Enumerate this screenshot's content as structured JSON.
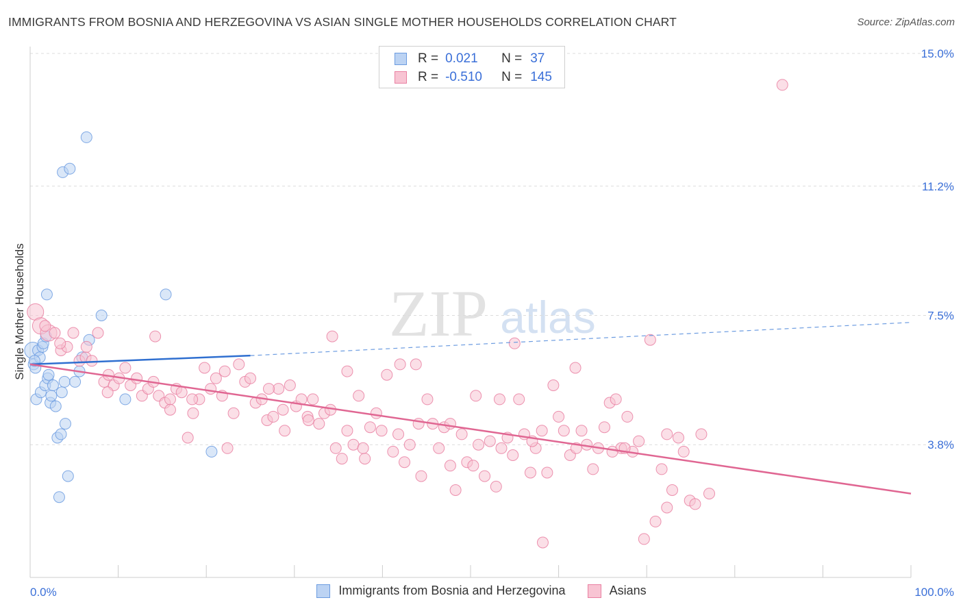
{
  "title": "IMMIGRANTS FROM BOSNIA AND HERZEGOVINA VS ASIAN SINGLE MOTHER HOUSEHOLDS CORRELATION CHART",
  "source": "Source: ZipAtlas.com",
  "watermark": {
    "zip": "ZIP",
    "atlas": "atlas"
  },
  "legend": {
    "rows": [
      {
        "r_label": "R =",
        "r_value": "0.021",
        "n_label": "N =",
        "n_value": "37",
        "color": "#6b9be0",
        "fill": "#bcd3f3"
      },
      {
        "r_label": "R =",
        "r_value": "-0.510",
        "n_label": "N =",
        "n_value": "145",
        "color": "#e97fa1",
        "fill": "#f8c4d3"
      }
    ]
  },
  "bottom_legend": [
    {
      "label": "Immigrants from Bosnia and Herzegovina",
      "color": "#6b9be0",
      "fill": "#bcd3f3"
    },
    {
      "label": "Asians",
      "color": "#e97fa1",
      "fill": "#f8c4d3"
    }
  ],
  "chart_data": {
    "type": "scatter",
    "title": "IMMIGRANTS FROM BOSNIA AND HERZEGOVINA VS ASIAN SINGLE MOTHER HOUSEHOLDS CORRELATION CHART",
    "xlabel": "",
    "ylabel": "Single Mother Households",
    "xlim": [
      0,
      100
    ],
    "ylim": [
      0.0,
      15.0
    ],
    "x_tick_labels": [
      "0.0%",
      "100.0%"
    ],
    "y_ticks": [
      3.8,
      7.5,
      11.2,
      15.0
    ],
    "y_tick_labels": [
      "3.8%",
      "7.5%",
      "11.2%",
      "15.0%"
    ],
    "grid": true,
    "legend_position": "top-center",
    "series": [
      {
        "name": "Immigrants from Bosnia and Herzegovina",
        "color": "#6b9be0",
        "fill": "#bcd3f3",
        "trend": {
          "x": [
            0,
            25,
            100
          ],
          "y": [
            6.1,
            6.35,
            7.3
          ],
          "solid_to": 25
        },
        "points": [
          [
            0.3,
            6.5
          ],
          [
            0.4,
            6.1
          ],
          [
            0.6,
            6.0
          ],
          [
            0.7,
            5.1
          ],
          [
            0.9,
            6.5
          ],
          [
            1.1,
            6.3
          ],
          [
            1.2,
            5.3
          ],
          [
            1.4,
            6.6
          ],
          [
            1.5,
            6.7
          ],
          [
            1.7,
            5.5
          ],
          [
            1.9,
            8.1
          ],
          [
            2.0,
            5.7
          ],
          [
            2.1,
            5.8
          ],
          [
            2.3,
            5.0
          ],
          [
            2.4,
            5.2
          ],
          [
            2.6,
            5.5
          ],
          [
            2.9,
            4.9
          ],
          [
            3.1,
            4.0
          ],
          [
            3.3,
            2.3
          ],
          [
            3.5,
            4.1
          ],
          [
            3.6,
            5.3
          ],
          [
            3.7,
            11.6
          ],
          [
            3.9,
            5.6
          ],
          [
            4.0,
            4.4
          ],
          [
            4.3,
            2.9
          ],
          [
            4.5,
            11.7
          ],
          [
            5.1,
            5.6
          ],
          [
            5.6,
            5.9
          ],
          [
            5.9,
            6.3
          ],
          [
            6.4,
            12.6
          ],
          [
            6.7,
            6.8
          ],
          [
            8.1,
            7.5
          ],
          [
            10.8,
            5.1
          ],
          [
            15.4,
            8.1
          ],
          [
            20.6,
            3.6
          ],
          [
            0.5,
            6.2
          ],
          [
            1.8,
            6.9
          ]
        ]
      },
      {
        "name": "Asians",
        "color": "#e97fa1",
        "fill": "#f8c4d3",
        "trend": {
          "x": [
            0,
            100
          ],
          "y": [
            6.1,
            2.4
          ],
          "solid_to": 100
        },
        "points": [
          [
            0.6,
            7.6
          ],
          [
            1.2,
            7.2
          ],
          [
            2.1,
            7.0
          ],
          [
            2.8,
            7.0
          ],
          [
            3.5,
            6.5
          ],
          [
            4.2,
            6.6
          ],
          [
            4.9,
            7.0
          ],
          [
            5.6,
            6.2
          ],
          [
            6.3,
            6.3
          ],
          [
            7.0,
            6.2
          ],
          [
            7.7,
            7.0
          ],
          [
            8.4,
            5.6
          ],
          [
            8.9,
            5.8
          ],
          [
            9.5,
            5.5
          ],
          [
            10.1,
            5.7
          ],
          [
            10.8,
            6.0
          ],
          [
            11.4,
            5.5
          ],
          [
            12.1,
            5.7
          ],
          [
            12.7,
            5.2
          ],
          [
            13.4,
            5.4
          ],
          [
            14.0,
            5.6
          ],
          [
            14.6,
            5.2
          ],
          [
            15.3,
            5.0
          ],
          [
            15.9,
            5.1
          ],
          [
            16.6,
            5.4
          ],
          [
            17.2,
            5.3
          ],
          [
            17.9,
            4.0
          ],
          [
            18.5,
            4.7
          ],
          [
            19.2,
            5.1
          ],
          [
            19.8,
            6.0
          ],
          [
            20.5,
            5.4
          ],
          [
            21.1,
            5.7
          ],
          [
            21.8,
            5.2
          ],
          [
            22.4,
            3.7
          ],
          [
            23.1,
            4.7
          ],
          [
            23.7,
            6.1
          ],
          [
            24.4,
            5.6
          ],
          [
            25.0,
            5.7
          ],
          [
            25.6,
            5.0
          ],
          [
            26.3,
            5.1
          ],
          [
            26.9,
            4.5
          ],
          [
            27.6,
            4.6
          ],
          [
            28.2,
            5.4
          ],
          [
            28.9,
            4.2
          ],
          [
            29.5,
            5.5
          ],
          [
            30.2,
            4.9
          ],
          [
            30.8,
            5.1
          ],
          [
            31.5,
            4.6
          ],
          [
            32.1,
            5.1
          ],
          [
            32.8,
            4.4
          ],
          [
            33.4,
            4.7
          ],
          [
            34.1,
            4.8
          ],
          [
            34.7,
            3.7
          ],
          [
            35.4,
            3.4
          ],
          [
            36.0,
            4.2
          ],
          [
            36.7,
            3.8
          ],
          [
            37.3,
            5.2
          ],
          [
            38.0,
            3.4
          ],
          [
            38.6,
            4.3
          ],
          [
            39.3,
            4.7
          ],
          [
            39.9,
            4.2
          ],
          [
            40.5,
            5.8
          ],
          [
            41.2,
            3.6
          ],
          [
            41.8,
            4.1
          ],
          [
            42.5,
            3.3
          ],
          [
            43.1,
            3.8
          ],
          [
            43.8,
            6.1
          ],
          [
            44.4,
            2.9
          ],
          [
            45.1,
            5.1
          ],
          [
            45.7,
            4.4
          ],
          [
            46.4,
            3.7
          ],
          [
            47.0,
            4.3
          ],
          [
            47.7,
            3.2
          ],
          [
            48.3,
            2.5
          ],
          [
            49.0,
            4.1
          ],
          [
            49.6,
            3.3
          ],
          [
            50.3,
            3.2
          ],
          [
            50.9,
            3.8
          ],
          [
            51.6,
            2.9
          ],
          [
            52.2,
            3.9
          ],
          [
            52.9,
            2.6
          ],
          [
            53.5,
            3.7
          ],
          [
            54.2,
            4.0
          ],
          [
            54.8,
            3.5
          ],
          [
            55.5,
            5.1
          ],
          [
            56.1,
            4.1
          ],
          [
            56.8,
            3.0
          ],
          [
            57.4,
            3.7
          ],
          [
            58.1,
            4.2
          ],
          [
            58.7,
            3.0
          ],
          [
            59.4,
            5.5
          ],
          [
            60.0,
            4.6
          ],
          [
            60.6,
            4.2
          ],
          [
            61.3,
            3.5
          ],
          [
            61.9,
            6.0
          ],
          [
            62.6,
            4.2
          ],
          [
            63.2,
            3.8
          ],
          [
            63.9,
            3.1
          ],
          [
            64.5,
            3.7
          ],
          [
            65.2,
            4.3
          ],
          [
            65.8,
            5.0
          ],
          [
            66.5,
            5.1
          ],
          [
            67.1,
            3.7
          ],
          [
            67.8,
            4.6
          ],
          [
            68.4,
            3.6
          ],
          [
            69.1,
            3.9
          ],
          [
            69.7,
            1.1
          ],
          [
            70.4,
            6.8
          ],
          [
            71.0,
            1.6
          ],
          [
            71.7,
            3.1
          ],
          [
            72.3,
            2.0
          ],
          [
            72.9,
            2.5
          ],
          [
            73.6,
            4.0
          ],
          [
            74.2,
            3.6
          ],
          [
            74.9,
            2.2
          ],
          [
            75.5,
            2.1
          ],
          [
            76.2,
            4.1
          ],
          [
            77.1,
            2.4
          ],
          [
            85.4,
            14.1
          ],
          [
            42.0,
            6.1
          ],
          [
            47.7,
            4.4
          ],
          [
            34.3,
            6.9
          ],
          [
            14.2,
            6.9
          ],
          [
            6.4,
            6.6
          ],
          [
            22.1,
            5.9
          ],
          [
            27.1,
            5.4
          ],
          [
            31.6,
            4.5
          ],
          [
            36.0,
            5.9
          ],
          [
            55.0,
            6.7
          ],
          [
            57.0,
            3.9
          ],
          [
            66.1,
            3.6
          ],
          [
            58.2,
            1.0
          ],
          [
            50.6,
            5.2
          ],
          [
            3.4,
            6.7
          ],
          [
            1.7,
            7.2
          ],
          [
            8.8,
            5.3
          ],
          [
            15.9,
            4.8
          ],
          [
            18.4,
            5.1
          ],
          [
            28.7,
            4.8
          ],
          [
            37.8,
            3.7
          ],
          [
            44.1,
            4.4
          ],
          [
            53.3,
            5.1
          ],
          [
            62.0,
            3.7
          ],
          [
            67.5,
            3.7
          ],
          [
            72.3,
            4.1
          ]
        ]
      }
    ]
  }
}
